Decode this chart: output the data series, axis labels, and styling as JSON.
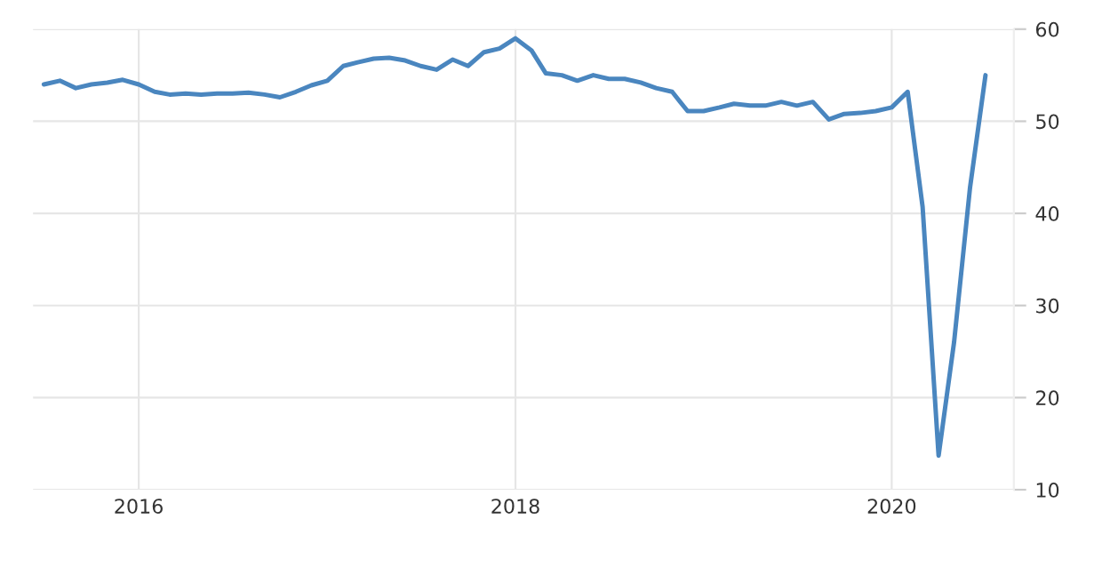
{
  "chart_data": {
    "type": "line",
    "x": [
      "2015-07",
      "2015-08",
      "2015-09",
      "2015-10",
      "2015-11",
      "2015-12",
      "2016-01",
      "2016-02",
      "2016-03",
      "2016-04",
      "2016-05",
      "2016-06",
      "2016-07",
      "2016-08",
      "2016-09",
      "2016-10",
      "2016-11",
      "2016-12",
      "2017-01",
      "2017-02",
      "2017-03",
      "2017-04",
      "2017-05",
      "2017-06",
      "2017-07",
      "2017-08",
      "2017-09",
      "2017-10",
      "2017-11",
      "2017-12",
      "2018-01",
      "2018-02",
      "2018-03",
      "2018-04",
      "2018-05",
      "2018-06",
      "2018-07",
      "2018-08",
      "2018-09",
      "2018-10",
      "2018-11",
      "2018-12",
      "2019-01",
      "2019-02",
      "2019-03",
      "2019-04",
      "2019-05",
      "2019-06",
      "2019-07",
      "2019-08",
      "2019-09",
      "2019-10",
      "2019-11",
      "2019-12",
      "2020-01",
      "2020-02",
      "2020-03",
      "2020-04",
      "2020-05",
      "2020-06",
      "2020-07"
    ],
    "series": [
      {
        "color": "#4a86bf",
        "values": [
          54.0,
          54.4,
          53.6,
          54.0,
          54.2,
          54.5,
          54.0,
          53.2,
          52.9,
          53.0,
          52.9,
          53.0,
          53.0,
          53.1,
          52.9,
          52.6,
          53.2,
          53.9,
          54.4,
          56.0,
          56.4,
          56.8,
          56.9,
          56.6,
          56.0,
          55.6,
          56.7,
          56.0,
          57.5,
          57.9,
          59.0,
          57.7,
          55.2,
          55.0,
          54.4,
          55.0,
          54.6,
          54.6,
          54.2,
          53.6,
          53.2,
          51.1,
          51.1,
          51.5,
          51.9,
          51.7,
          51.7,
          52.1,
          51.7,
          52.1,
          50.2,
          50.8,
          50.9,
          51.1,
          51.5,
          53.2,
          40.7,
          13.7,
          26.0,
          42.8,
          55.0
        ]
      }
    ],
    "xlim": [
      "2015-06-10",
      "2020-08-25"
    ],
    "xticks": [
      {
        "value": "2016-01-01",
        "label": "2016"
      },
      {
        "value": "2018-01-01",
        "label": "2018"
      },
      {
        "value": "2020-01-01",
        "label": "2020"
      }
    ],
    "ylim": [
      10,
      60
    ],
    "yticks": [
      10,
      20,
      30,
      40,
      50,
      60
    ],
    "grid": true,
    "legend": false
  }
}
